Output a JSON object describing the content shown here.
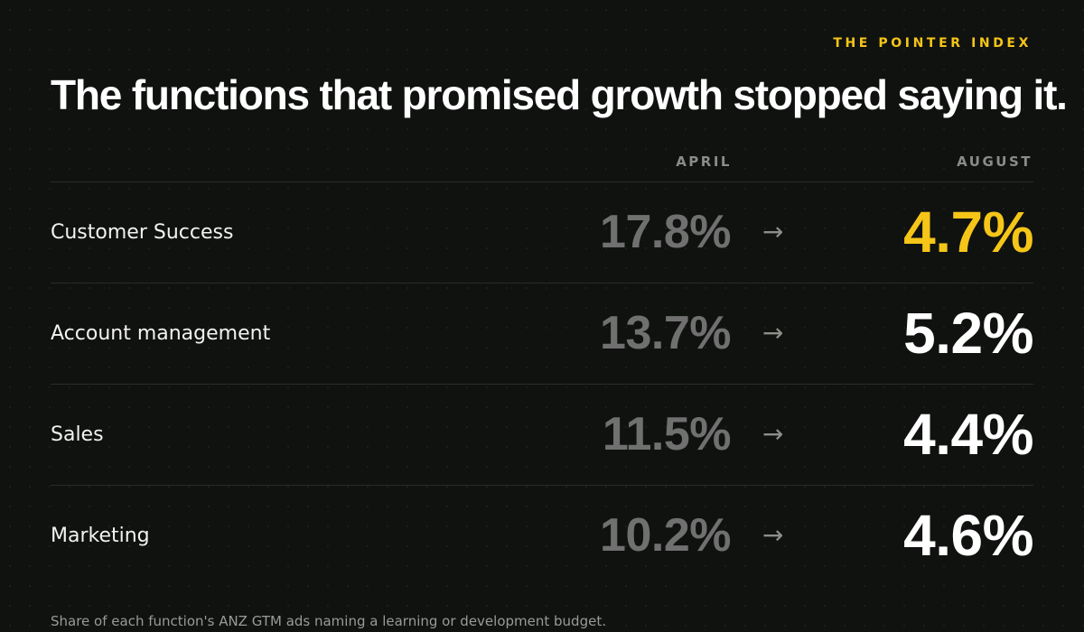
{
  "brand": "THE POINTER INDEX",
  "title": "The functions that promised growth stopped saying it.",
  "columns": {
    "april": "APRIL",
    "august": "AUGUST"
  },
  "arrow_glyph": "→",
  "footnote": "Share of each function's ANZ GTM ads naming a learning or development budget.",
  "colors": {
    "background": "#101210",
    "accent": "#f5c518",
    "april_value": "#707070",
    "august_value": "#ffffff",
    "label": "#f2f2f0"
  },
  "chart_data": {
    "type": "table",
    "title": "The functions that promised growth stopped saying it.",
    "unit": "%",
    "columns": [
      "APRIL",
      "AUGUST"
    ],
    "rows": [
      {
        "name": "Customer Success",
        "april": 17.8,
        "august": 4.7,
        "april_label": "17.8%",
        "august_label": "4.7%",
        "highlight": true
      },
      {
        "name": "Account management",
        "april": 13.7,
        "august": 5.2,
        "april_label": "13.7%",
        "august_label": "5.2%",
        "highlight": false
      },
      {
        "name": "Sales",
        "april": 11.5,
        "august": 4.4,
        "april_label": "11.5%",
        "august_label": "4.4%",
        "highlight": false
      },
      {
        "name": "Marketing",
        "april": 10.2,
        "august": 4.6,
        "april_label": "10.2%",
        "august_label": "4.6%",
        "highlight": false
      }
    ]
  }
}
